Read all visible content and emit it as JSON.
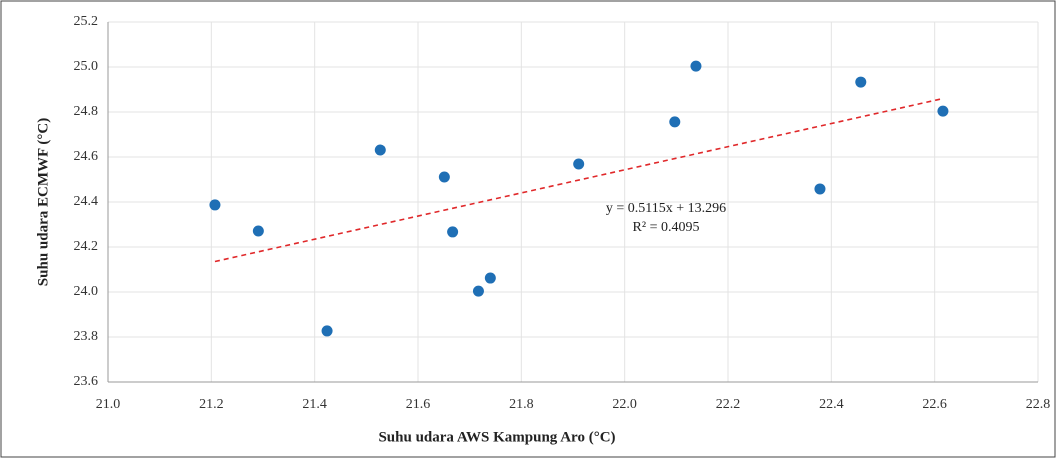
{
  "chart_data": {
    "type": "scatter",
    "x_label": "Suhu udara AWS Kampung Aro (°C)",
    "y_label": "Suhu udara ECMWF (°C)",
    "equation": "y = 0.5115x + 13.296",
    "r_squared": "R² = 0.4095",
    "color": "#1f6fb5",
    "trend_color": "#e0282a",
    "x": [
      21.207,
      21.291,
      21.424,
      21.527,
      21.651,
      21.667,
      21.717,
      21.74,
      21.911,
      22.097,
      22.138,
      22.378,
      22.457,
      22.616
    ],
    "values": [
      24.387,
      24.271,
      23.827,
      24.631,
      24.511,
      24.267,
      24.004,
      24.062,
      24.569,
      24.756,
      25.004,
      24.458,
      24.933,
      24.804
    ],
    "xlim": [
      21.0,
      22.8
    ],
    "xticks": [
      {
        "value": 21.0,
        "label": "21.0"
      },
      21.2,
      21.4,
      21.6,
      21.8,
      {
        "value": 22.0,
        "label": "22.0"
      },
      22.2,
      22.4,
      22.6,
      22.8
    ],
    "ylim": [
      23.6,
      25.2
    ],
    "yticks": [
      23.6,
      23.8,
      {
        "value": 24.0,
        "label": "24.0"
      },
      24.2,
      24.4,
      24.6,
      24.8,
      {
        "value": 25.0,
        "label": "25.0"
      },
      25.2
    ],
    "grid": true
  }
}
